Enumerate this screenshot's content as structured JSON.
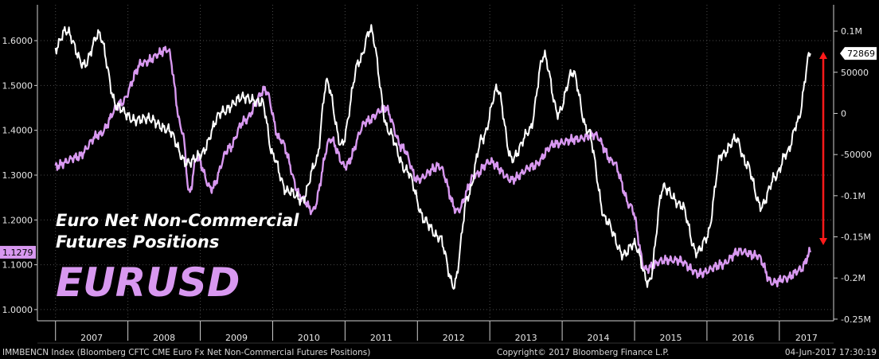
{
  "chart_data": {
    "type": "line",
    "title_line1": "Euro Net Non-Commercial",
    "title_line2": "Futures Positions",
    "big_label": "EURUSD",
    "x_tick_labels": [
      "2007",
      "2008",
      "2009",
      "2010",
      "2011",
      "2012",
      "2013",
      "2014",
      "2015",
      "2016",
      "2017"
    ],
    "left_axis": {
      "ticks": [
        "1.6000",
        "1.5000",
        "1.4000",
        "1.3000",
        "1.2000",
        "1.1000",
        "1.0000"
      ],
      "ylim": [
        0.975,
        1.68
      ]
    },
    "right_axis": {
      "ticks": [
        "0.1M",
        "50000",
        "0",
        "-50000",
        "-0.1M",
        "-0.15M",
        "-0.2M",
        "-0.25M"
      ],
      "ylim": [
        -252000,
        132000
      ]
    },
    "last_values": {
      "eurusd": "1.1279",
      "net_positions": "72869"
    },
    "series": [
      {
        "name": "EURUSD",
        "axis": "left",
        "color": "#d898f0",
        "points": [
          [
            2007.0,
            1.32
          ],
          [
            2007.3,
            1.34
          ],
          [
            2007.6,
            1.39
          ],
          [
            2007.9,
            1.46
          ],
          [
            2008.2,
            1.55
          ],
          [
            2008.55,
            1.58
          ],
          [
            2008.75,
            1.4
          ],
          [
            2008.85,
            1.26
          ],
          [
            2008.95,
            1.34
          ],
          [
            2009.15,
            1.27
          ],
          [
            2009.4,
            1.36
          ],
          [
            2009.6,
            1.42
          ],
          [
            2009.9,
            1.49
          ],
          [
            2010.1,
            1.38
          ],
          [
            2010.4,
            1.25
          ],
          [
            2010.55,
            1.22
          ],
          [
            2010.8,
            1.38
          ],
          [
            2011.0,
            1.32
          ],
          [
            2011.3,
            1.42
          ],
          [
            2011.55,
            1.45
          ],
          [
            2011.8,
            1.36
          ],
          [
            2012.0,
            1.29
          ],
          [
            2012.3,
            1.32
          ],
          [
            2012.55,
            1.22
          ],
          [
            2012.8,
            1.3
          ],
          [
            2013.0,
            1.33
          ],
          [
            2013.3,
            1.29
          ],
          [
            2013.6,
            1.32
          ],
          [
            2013.9,
            1.37
          ],
          [
            2014.2,
            1.38
          ],
          [
            2014.45,
            1.39
          ],
          [
            2014.7,
            1.33
          ],
          [
            2014.95,
            1.23
          ],
          [
            2015.15,
            1.09
          ],
          [
            2015.4,
            1.11
          ],
          [
            2015.6,
            1.11
          ],
          [
            2015.9,
            1.08
          ],
          [
            2016.2,
            1.1
          ],
          [
            2016.45,
            1.13
          ],
          [
            2016.7,
            1.12
          ],
          [
            2016.9,
            1.06
          ],
          [
            2017.1,
            1.07
          ],
          [
            2017.3,
            1.09
          ],
          [
            2017.43,
            1.1279
          ]
        ]
      },
      {
        "name": "IMMBENCN Index",
        "axis": "right",
        "color": "#ffffff",
        "points": [
          [
            2007.0,
            80000
          ],
          [
            2007.15,
            100000
          ],
          [
            2007.4,
            60000
          ],
          [
            2007.6,
            95000
          ],
          [
            2007.85,
            10000
          ],
          [
            2008.1,
            -10000
          ],
          [
            2008.3,
            -5000
          ],
          [
            2008.55,
            -20000
          ],
          [
            2008.8,
            -60000
          ],
          [
            2009.0,
            -50000
          ],
          [
            2009.3,
            0
          ],
          [
            2009.6,
            20000
          ],
          [
            2009.85,
            15000
          ],
          [
            2010.0,
            -50000
          ],
          [
            2010.2,
            -95000
          ],
          [
            2010.4,
            -105000
          ],
          [
            2010.6,
            -60000
          ],
          [
            2010.75,
            40000
          ],
          [
            2010.95,
            -40000
          ],
          [
            2011.2,
            65000
          ],
          [
            2011.35,
            100000
          ],
          [
            2011.6,
            -20000
          ],
          [
            2011.85,
            -70000
          ],
          [
            2012.1,
            -130000
          ],
          [
            2012.3,
            -150000
          ],
          [
            2012.5,
            -210000
          ],
          [
            2012.7,
            -100000
          ],
          [
            2012.9,
            -30000
          ],
          [
            2013.1,
            30000
          ],
          [
            2013.3,
            -55000
          ],
          [
            2013.55,
            -20000
          ],
          [
            2013.75,
            70000
          ],
          [
            2013.95,
            0
          ],
          [
            2014.15,
            50000
          ],
          [
            2014.35,
            -20000
          ],
          [
            2014.6,
            -130000
          ],
          [
            2014.85,
            -170000
          ],
          [
            2015.0,
            -160000
          ],
          [
            2015.2,
            -205000
          ],
          [
            2015.4,
            -90000
          ],
          [
            2015.65,
            -110000
          ],
          [
            2015.85,
            -170000
          ],
          [
            2016.0,
            -150000
          ],
          [
            2016.2,
            -50000
          ],
          [
            2016.4,
            -30000
          ],
          [
            2016.55,
            -60000
          ],
          [
            2016.75,
            -115000
          ],
          [
            2016.95,
            -75000
          ],
          [
            2017.1,
            -50000
          ],
          [
            2017.25,
            -10000
          ],
          [
            2017.43,
            72869
          ]
        ]
      }
    ],
    "annotation": "red double arrow near 2017 spanning the net positions swing",
    "colors": {
      "background": "#000000",
      "grid": "#4a4a4a",
      "axis_line": "#cfcfcf",
      "eurusd": "#d898f0",
      "positions": "#ffffff",
      "arrow": "#ff1a1a"
    }
  },
  "footer": {
    "left": "IMMBENCN Index (Bloomberg CFTC CME Euro Fx Net Non-Commercial Futures Positions)",
    "center": "Copyright© 2017 Bloomberg Finance L.P.",
    "right": "04-Jun-2017 17:30:19"
  }
}
